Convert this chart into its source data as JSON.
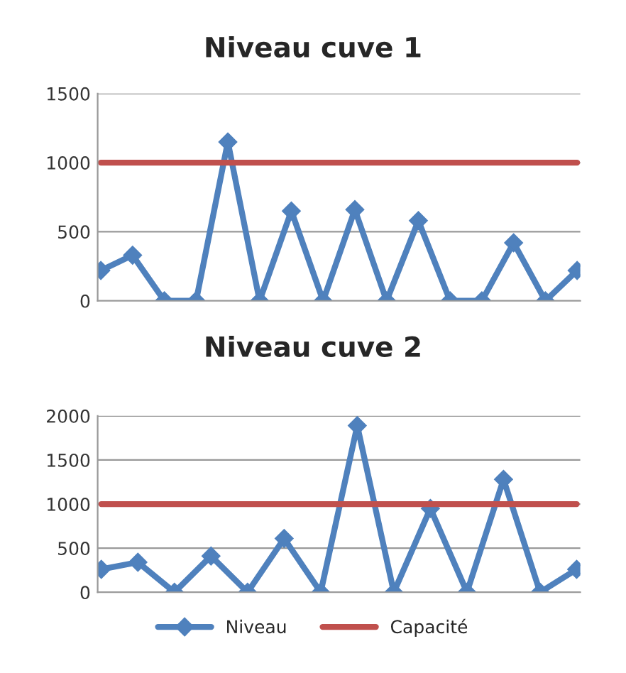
{
  "chart_data": [
    {
      "type": "line",
      "title": "Niveau cuve 1",
      "categories": [
        null,
        null,
        null,
        null,
        null,
        null,
        null,
        null,
        null,
        null,
        null,
        null,
        null,
        null,
        null,
        null
      ],
      "ylim": [
        0,
        1500
      ],
      "yticks": [
        0,
        500,
        1000,
        1500
      ],
      "grid": "y",
      "marker": "diamond",
      "legend": "bottom",
      "series": [
        {
          "name": "Niveau",
          "color": "#4f81bd",
          "values": [
            220,
            330,
            0,
            0,
            1150,
            0,
            650,
            0,
            660,
            0,
            580,
            0,
            0,
            420,
            0,
            220
          ]
        },
        {
          "name": "Capacité",
          "color": "#c0504d",
          "marker": "none",
          "values": [
            1000,
            1000,
            1000,
            1000,
            1000,
            1000,
            1000,
            1000,
            1000,
            1000,
            1000,
            1000,
            1000,
            1000,
            1000,
            1000
          ]
        }
      ]
    },
    {
      "type": "line",
      "title": "Niveau cuve 2",
      "categories": [
        null,
        null,
        null,
        null,
        null,
        null,
        null,
        null,
        null,
        null,
        null,
        null,
        null,
        null
      ],
      "ylim": [
        0,
        2000
      ],
      "yticks": [
        0,
        500,
        1000,
        1500,
        2000
      ],
      "grid": "y",
      "marker": "diamond",
      "series": [
        {
          "color": "#4f81bd",
          "values": [
            260,
            340,
            0,
            410,
            0,
            610,
            0,
            1890,
            0,
            950,
            0,
            1280,
            0,
            260
          ]
        },
        {
          "color": "#c0504d",
          "marker": "none",
          "values": [
            1000,
            1000,
            1000,
            1000,
            1000,
            1000,
            1000,
            1000,
            1000,
            1000,
            1000,
            1000,
            1000,
            1000
          ]
        }
      ]
    }
  ]
}
